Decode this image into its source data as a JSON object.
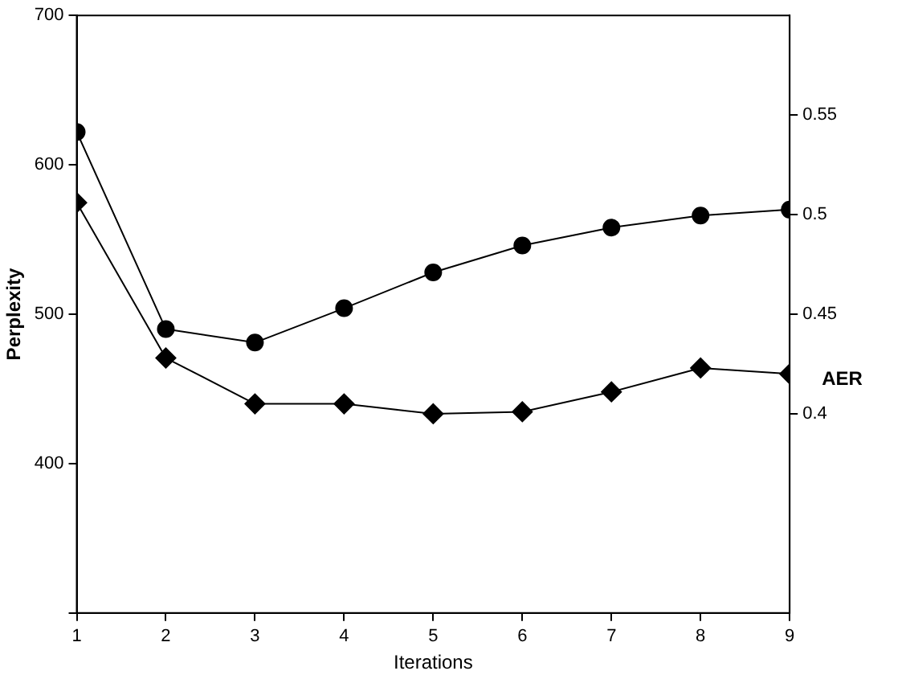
{
  "chart_data": {
    "type": "line",
    "xlabel": "Iterations",
    "ylabel": "Perplexity",
    "y2label": "AER",
    "x": [
      1,
      2,
      3,
      4,
      5,
      6,
      7,
      8,
      9
    ],
    "xlim": [
      1,
      9
    ],
    "xticks": [
      1,
      2,
      3,
      4,
      5,
      6,
      7,
      8,
      9
    ],
    "ylim": [
      300,
      700
    ],
    "yticks": [
      {
        "value": 300,
        "label": null
      },
      400,
      500,
      600,
      700
    ],
    "y2lim": [
      0.3,
      0.6
    ],
    "y2ticks": [
      0.4,
      0.45,
      0.5,
      0.55
    ],
    "grid": false,
    "legend": false,
    "line_style": "solid",
    "series": [
      {
        "color": "#000000",
        "marker": "circle",
        "values": [
          622,
          490,
          481,
          504,
          528,
          546,
          558,
          566,
          570
        ]
      },
      {
        "color": "#000000",
        "marker": "diamond",
        "axis": "y2",
        "values": [
          0.506,
          0.428,
          0.405,
          0.405,
          0.4,
          0.401,
          0.411,
          0.423,
          0.42
        ]
      }
    ]
  }
}
